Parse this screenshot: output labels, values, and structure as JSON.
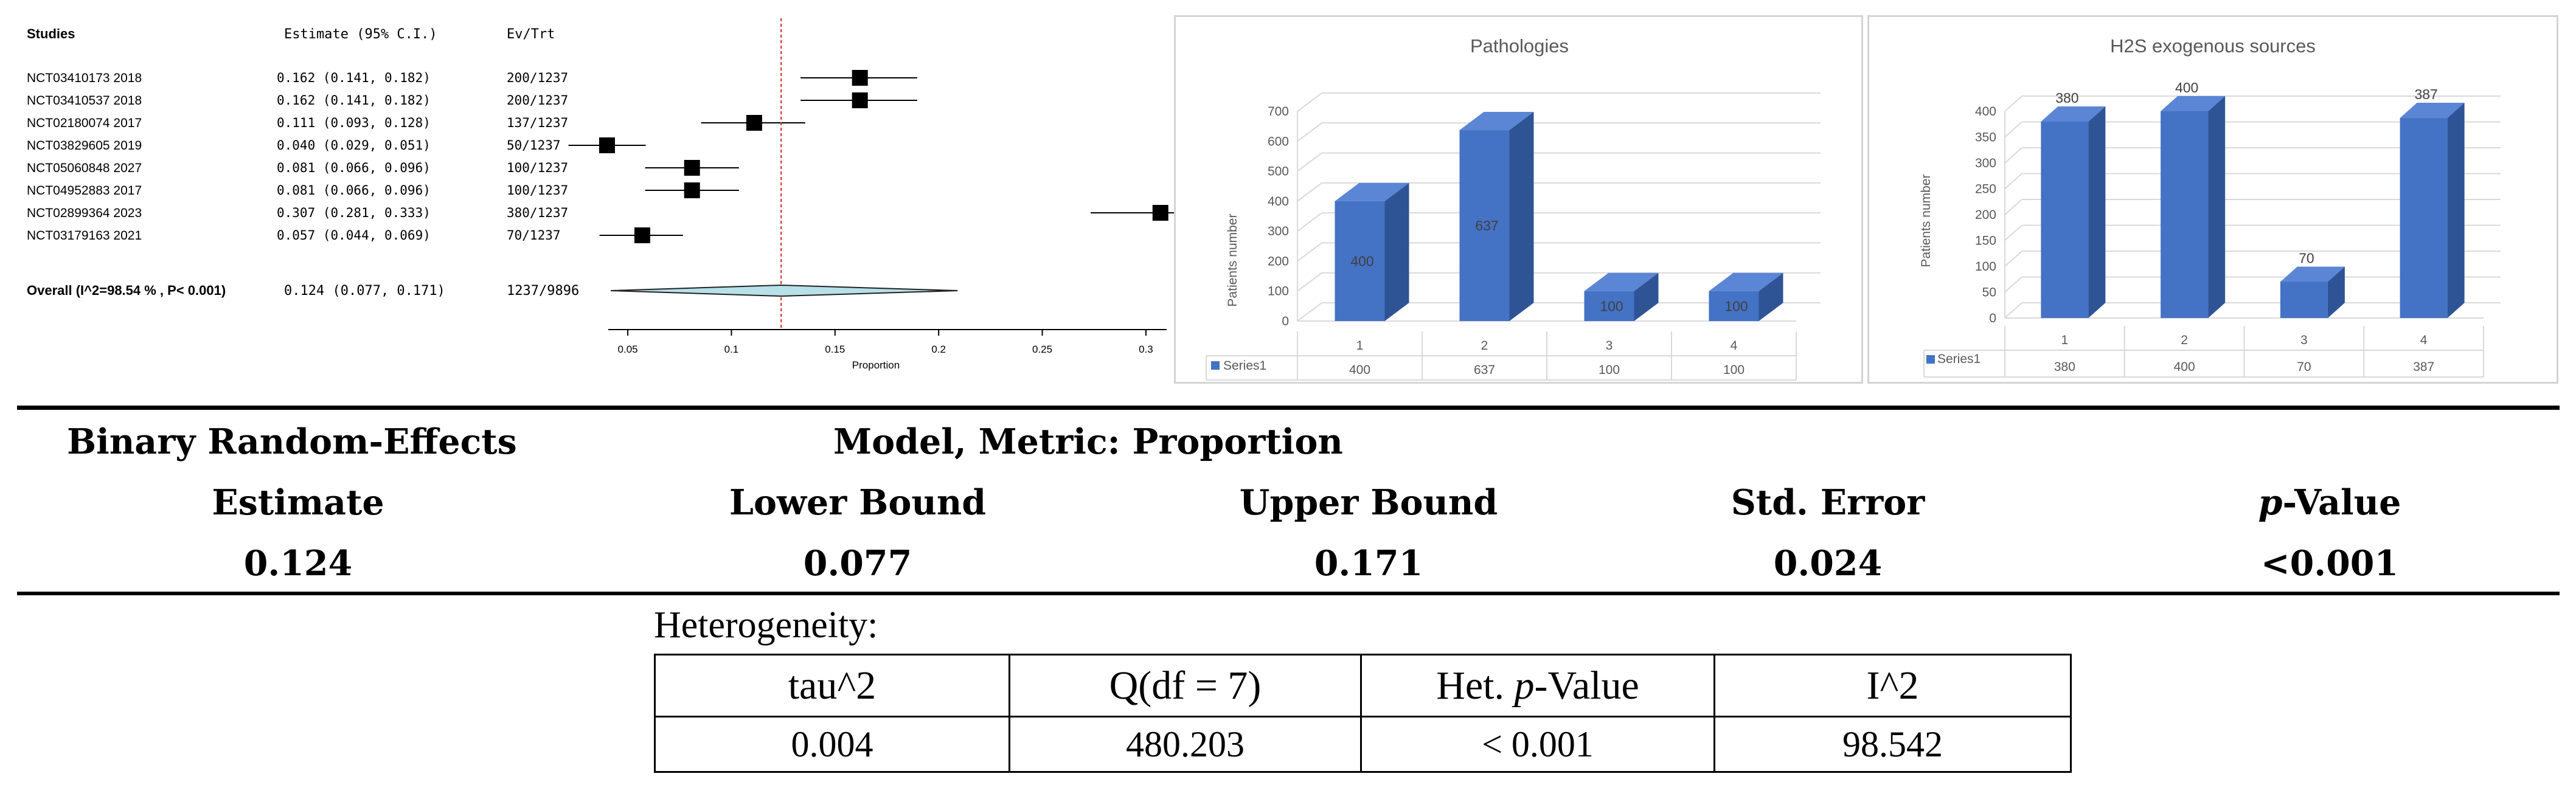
{
  "forest_plot": {
    "header": {
      "studies": "Studies",
      "estimate": "Estimate (95% C.I.)",
      "evtrt": "Ev/Trt"
    },
    "overall": {
      "label": "Overall (I^2=98.54 % , P< 0.001)",
      "ci": "0.124 (0.077, 0.171)",
      "evtrt": "1237/9896"
    },
    "xlabel": "Proportion"
  },
  "pathologies_chart": {
    "title": "Pathologies",
    "ylabel": "Patients number",
    "series_label": "Series1"
  },
  "h2s_chart": {
    "title": "H2S exogenous sources",
    "ylabel": "Patients number",
    "series_label": "Series1"
  },
  "summary": {
    "title_left": "Binary Random-Effects",
    "title_right": "Model, Metric: Proportion",
    "headers": [
      "Estimate",
      "Lower Bound",
      "Upper Bound",
      "Std. Error",
      "p-Value"
    ],
    "values": [
      "0.124",
      "0.077",
      "0.171",
      "0.024",
      "<0.001"
    ]
  },
  "heterogeneity": {
    "label": "Heterogeneity:",
    "headers": [
      "tau^2",
      "Q(df = 7)",
      "Het. p-Value",
      "I^2"
    ],
    "values": [
      "0.004",
      "480.203",
      "< 0.001",
      "98.542"
    ]
  },
  "chart_data": [
    {
      "type": "forest",
      "studies": [
        {
          "name": "NCT03410173 2018",
          "estimate": 0.162,
          "lower": 0.141,
          "upper": 0.182,
          "ci": "0.162 (0.141, 0.182)",
          "evtrt": "200/1237"
        },
        {
          "name": "NCT03410537 2018",
          "estimate": 0.162,
          "lower": 0.141,
          "upper": 0.182,
          "ci": "0.162 (0.141, 0.182)",
          "evtrt": "200/1237"
        },
        {
          "name": "NCT02180074 2017",
          "estimate": 0.111,
          "lower": 0.093,
          "upper": 0.128,
          "ci": "0.111 (0.093, 0.128)",
          "evtrt": "137/1237"
        },
        {
          "name": "NCT03829605 2019",
          "estimate": 0.04,
          "lower": 0.029,
          "upper": 0.051,
          "ci": "0.040 (0.029, 0.051)",
          "evtrt": "50/1237"
        },
        {
          "name": "NCT05060848 2027",
          "estimate": 0.081,
          "lower": 0.066,
          "upper": 0.096,
          "ci": "0.081 (0.066, 0.096)",
          "evtrt": "100/1237"
        },
        {
          "name": "NCT04952883 2017",
          "estimate": 0.081,
          "lower": 0.066,
          "upper": 0.096,
          "ci": "0.081 (0.066, 0.096)",
          "evtrt": "100/1237"
        },
        {
          "name": "NCT02899364 2023",
          "estimate": 0.307,
          "lower": 0.281,
          "upper": 0.333,
          "ci": "0.307 (0.281, 0.333)",
          "evtrt": "380/1237"
        },
        {
          "name": "NCT03179163 2021",
          "estimate": 0.057,
          "lower": 0.044,
          "upper": 0.069,
          "ci": "0.057 (0.044, 0.069)",
          "evtrt": "70/1237"
        }
      ],
      "overall": {
        "estimate": 0.124,
        "lower": 0.077,
        "upper": 0.171
      },
      "xticks": [
        0.05,
        0.1,
        0.15,
        0.2,
        0.25,
        0.3
      ],
      "xtick_labels": [
        "0.05",
        "0.1",
        "0.15",
        "0.2",
        "0.25",
        "0.3"
      ],
      "xlim": [
        0.04,
        0.31
      ],
      "xlabel": "Proportion",
      "reference_line": 0.124
    },
    {
      "type": "bar",
      "title": "Pathologies",
      "ylabel": "Patients number",
      "categories": [
        "1",
        "2",
        "3",
        "4"
      ],
      "series": [
        {
          "name": "Series1",
          "values": [
            400,
            637,
            100,
            100
          ]
        }
      ],
      "ylim": [
        0,
        700
      ],
      "yticks": [
        0,
        100,
        200,
        300,
        400,
        500,
        600,
        700
      ],
      "bar_color": "#4472c4",
      "data_table": true
    },
    {
      "type": "bar",
      "title": "H2S exogenous sources",
      "ylabel": "Patients number",
      "categories": [
        "1",
        "2",
        "3",
        "4"
      ],
      "series": [
        {
          "name": "Series1",
          "values": [
            380,
            400,
            70,
            387
          ]
        }
      ],
      "ylim": [
        0,
        400
      ],
      "yticks": [
        0,
        50,
        100,
        150,
        200,
        250,
        300,
        350,
        400
      ],
      "bar_color": "#4472c4",
      "data_table": true
    }
  ]
}
